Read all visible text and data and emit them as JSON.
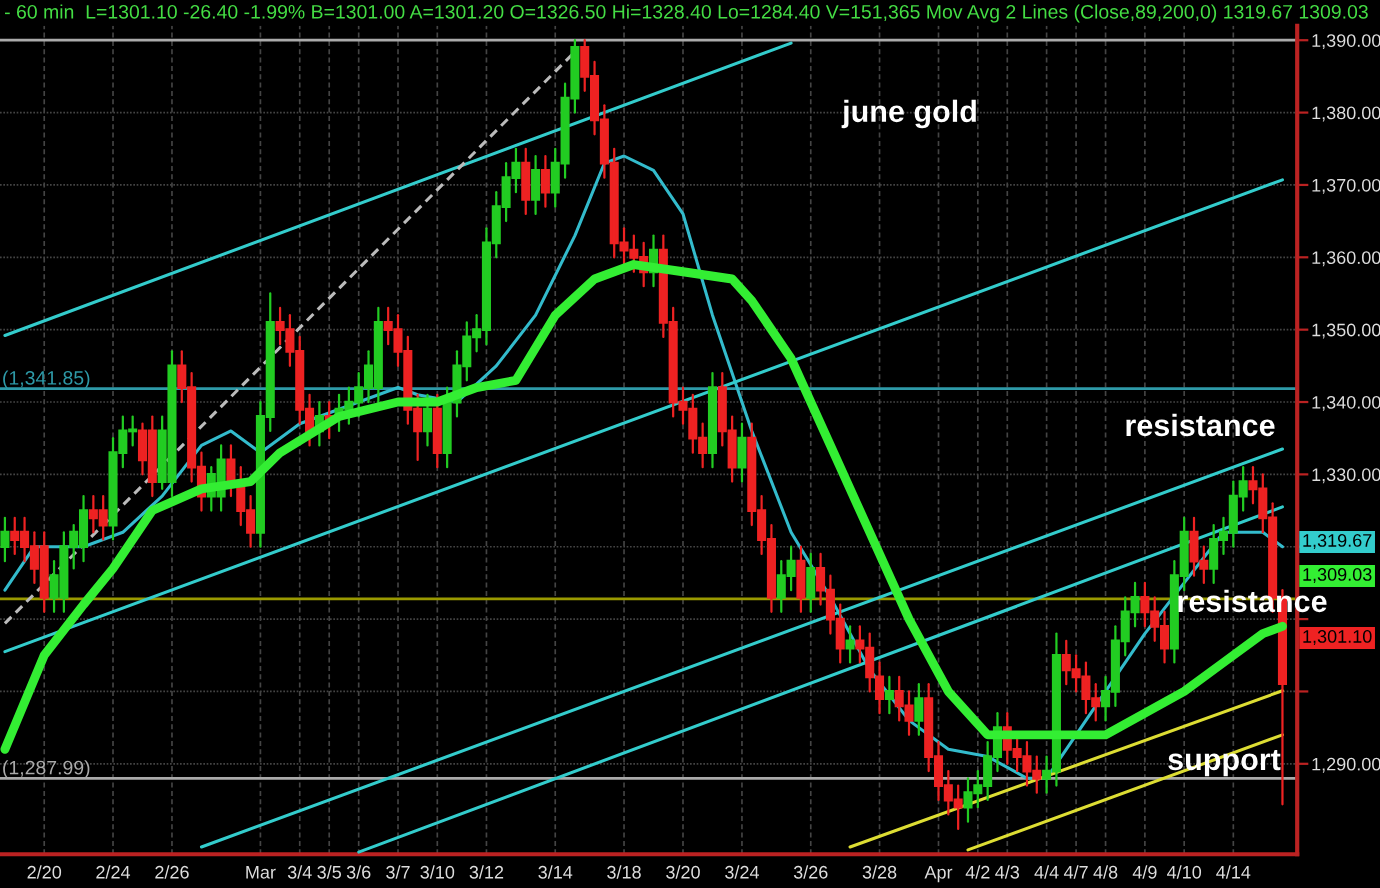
{
  "chart_data": {
    "type": "candlestick",
    "title": "- 60 min  L=1301.10 -26.40 -1.99% B=1301.00 A=1301.20 O=1326.50 Hi=1328.40 Lo=1284.40 V=151,365 Mov Avg 2 Lines (Close,89,200,0) 1319.67 1309.03",
    "categories": [
      null,
      null,
      null,
      null,
      "2/20",
      null,
      null,
      null,
      null,
      null,
      null,
      "2/24",
      null,
      null,
      null,
      null,
      null,
      "2/26",
      null,
      null,
      null,
      null,
      null,
      null,
      null,
      null,
      "Mar",
      null,
      null,
      null,
      "3/4",
      null,
      null,
      "3/5",
      null,
      null,
      "3/6",
      null,
      null,
      null,
      "3/7",
      null,
      null,
      null,
      "3/10",
      null,
      null,
      null,
      null,
      "3/12",
      null,
      null,
      null,
      null,
      null,
      null,
      "3/14",
      null,
      null,
      null,
      null,
      null,
      null,
      "3/18",
      null,
      null,
      null,
      null,
      null,
      "3/20",
      null,
      null,
      null,
      null,
      null,
      "3/24",
      null,
      null,
      null,
      null,
      null,
      null,
      "3/26",
      null,
      null,
      null,
      null,
      null,
      null,
      "3/28",
      null,
      null,
      null,
      null,
      null,
      "Apr",
      null,
      null,
      null,
      "4/2",
      null,
      null,
      "4/3",
      null,
      null,
      null,
      "4/4",
      null,
      null,
      "4/7",
      null,
      null,
      "4/8",
      null,
      null,
      null,
      "4/9",
      null,
      null,
      null,
      "4/10",
      null,
      null,
      null,
      null,
      "4/14",
      null,
      null,
      null,
      null,
      null
    ],
    "ohlc": [
      [
        1320,
        1324,
        1318,
        1322
      ],
      [
        1322,
        1324,
        1319,
        1321
      ],
      [
        1322,
        1324,
        1318,
        1320
      ],
      [
        1320,
        1322,
        1315,
        1317
      ],
      [
        1320,
        1322,
        1311,
        1313
      ],
      [
        1313,
        1318,
        1311,
        1316
      ],
      [
        1313,
        1322,
        1311,
        1320
      ],
      [
        1320,
        1323,
        1317,
        1322
      ],
      [
        1320,
        1327,
        1318,
        1325
      ],
      [
        1325,
        1327,
        1322,
        1324
      ],
      [
        1325,
        1327,
        1321,
        1323
      ],
      [
        1323,
        1335,
        1321,
        1333
      ],
      [
        1333,
        1338,
        1331,
        1336
      ],
      [
        1336,
        1338,
        1334,
        1336
      ],
      [
        1336,
        1337,
        1330,
        1332
      ],
      [
        1336,
        1338,
        1327,
        1329
      ],
      [
        1329,
        1338,
        1328,
        1336
      ],
      [
        1329,
        1347,
        1327,
        1345
      ],
      [
        1345,
        1347,
        1340,
        1342
      ],
      [
        1342,
        1344,
        1329,
        1331
      ],
      [
        1331,
        1333,
        1325,
        1327
      ],
      [
        1327,
        1331,
        1325,
        1330
      ],
      [
        1327,
        1334,
        1325,
        1332
      ],
      [
        1332,
        1334,
        1327,
        1329
      ],
      [
        1329,
        1331,
        1323,
        1325
      ],
      [
        1325,
        1327,
        1320,
        1322
      ],
      [
        1322,
        1340,
        1320,
        1338
      ],
      [
        1338,
        1355,
        1336,
        1351
      ],
      [
        1351,
        1353,
        1348,
        1350
      ],
      [
        1350,
        1352,
        1345,
        1347
      ],
      [
        1347,
        1349,
        1337,
        1339
      ],
      [
        1339,
        1341,
        1334,
        1336
      ],
      [
        1336,
        1340,
        1334,
        1338
      ],
      [
        1338,
        1340,
        1335,
        1337
      ],
      [
        1338,
        1341,
        1336,
        1339
      ],
      [
        1339,
        1342,
        1337,
        1340
      ],
      [
        1340,
        1344,
        1338,
        1342
      ],
      [
        1342,
        1347,
        1340,
        1345
      ],
      [
        1342,
        1353,
        1340,
        1351
      ],
      [
        1351,
        1353,
        1348,
        1350
      ],
      [
        1350,
        1352,
        1345,
        1347
      ],
      [
        1347,
        1349,
        1337,
        1339
      ],
      [
        1339,
        1341,
        1332,
        1336
      ],
      [
        1336,
        1341,
        1334,
        1339
      ],
      [
        1339,
        1341,
        1331,
        1333
      ],
      [
        1333,
        1342,
        1331,
        1340
      ],
      [
        1340,
        1347,
        1338,
        1345
      ],
      [
        1345,
        1351,
        1343,
        1349
      ],
      [
        1349,
        1352,
        1347,
        1350
      ],
      [
        1350,
        1364,
        1348,
        1362
      ],
      [
        1362,
        1369,
        1360,
        1367
      ],
      [
        1367,
        1373,
        1365,
        1371
      ],
      [
        1371,
        1375,
        1369,
        1373
      ],
      [
        1373,
        1375,
        1366,
        1368
      ],
      [
        1368,
        1374,
        1366,
        1372
      ],
      [
        1372,
        1374,
        1367,
        1369
      ],
      [
        1369,
        1375,
        1367,
        1373
      ],
      [
        1373,
        1384,
        1371,
        1382
      ],
      [
        1382,
        1390,
        1380,
        1389
      ],
      [
        1389,
        1390,
        1383,
        1385
      ],
      [
        1385,
        1387,
        1377,
        1379
      ],
      [
        1379,
        1381,
        1371,
        1373
      ],
      [
        1373,
        1375,
        1360,
        1362
      ],
      [
        1362,
        1364,
        1359,
        1361
      ],
      [
        1361,
        1363,
        1358,
        1360
      ],
      [
        1360,
        1362,
        1356,
        1358
      ],
      [
        1358,
        1363,
        1356,
        1361
      ],
      [
        1361,
        1363,
        1349,
        1351
      ],
      [
        1351,
        1353,
        1338,
        1340
      ],
      [
        1340,
        1342,
        1337,
        1339
      ],
      [
        1339,
        1341,
        1333,
        1335
      ],
      [
        1335,
        1337,
        1331,
        1333
      ],
      [
        1333,
        1344,
        1331,
        1342
      ],
      [
        1342,
        1344,
        1334,
        1336
      ],
      [
        1336,
        1338,
        1329,
        1331
      ],
      [
        1331,
        1337,
        1329,
        1335
      ],
      [
        1335,
        1337,
        1323,
        1325
      ],
      [
        1325,
        1327,
        1319,
        1321
      ],
      [
        1321,
        1323,
        1311,
        1313
      ],
      [
        1313,
        1318,
        1311,
        1316
      ],
      [
        1316,
        1320,
        1314,
        1318
      ],
      [
        1318,
        1320,
        1311,
        1313
      ],
      [
        1313,
        1319,
        1311,
        1317
      ],
      [
        1317,
        1319,
        1312,
        1314
      ],
      [
        1314,
        1316,
        1308,
        1310
      ],
      [
        1310,
        1312,
        1304,
        1306
      ],
      [
        1306,
        1309,
        1304,
        1307
      ],
      [
        1307,
        1309,
        1304,
        1306
      ],
      [
        1306,
        1308,
        1300,
        1302
      ],
      [
        1302,
        1304,
        1297,
        1299
      ],
      [
        1299,
        1302,
        1297,
        1300
      ],
      [
        1300,
        1302,
        1296,
        1298
      ],
      [
        1298,
        1300,
        1294,
        1296
      ],
      [
        1296,
        1301,
        1294,
        1299
      ],
      [
        1299,
        1301,
        1289,
        1291
      ],
      [
        1291,
        1293,
        1285,
        1287
      ],
      [
        1287,
        1289,
        1283,
        1285
      ],
      [
        1285,
        1287,
        1281,
        1284
      ],
      [
        1284,
        1288,
        1282,
        1286
      ],
      [
        1286,
        1289,
        1284,
        1287
      ],
      [
        1287,
        1293,
        1285,
        1291
      ],
      [
        1291,
        1297,
        1289,
        1295
      ],
      [
        1295,
        1297,
        1290,
        1292
      ],
      [
        1292,
        1294,
        1289,
        1291
      ],
      [
        1291,
        1293,
        1287,
        1289
      ],
      [
        1289,
        1291,
        1286,
        1288
      ],
      [
        1288,
        1291,
        1286,
        1289
      ],
      [
        1289,
        1308,
        1287,
        1305
      ],
      [
        1305,
        1307,
        1301,
        1303
      ],
      [
        1303,
        1305,
        1300,
        1302
      ],
      [
        1302,
        1304,
        1297,
        1299
      ],
      [
        1299,
        1301,
        1296,
        1298
      ],
      [
        1298,
        1302,
        1296,
        1300
      ],
      [
        1300,
        1309,
        1298,
        1307
      ],
      [
        1307,
        1313,
        1305,
        1311
      ],
      [
        1311,
        1315,
        1309,
        1313
      ],
      [
        1313,
        1315,
        1309,
        1311
      ],
      [
        1311,
        1313,
        1307,
        1309
      ],
      [
        1309,
        1311,
        1304,
        1306
      ],
      [
        1306,
        1318,
        1304,
        1316
      ],
      [
        1316,
        1324,
        1314,
        1322
      ],
      [
        1322,
        1324,
        1316,
        1318
      ],
      [
        1318,
        1320,
        1315,
        1317
      ],
      [
        1317,
        1323,
        1315,
        1321
      ],
      [
        1321,
        1324,
        1319,
        1322
      ],
      [
        1322,
        1329,
        1320,
        1327
      ],
      [
        1327,
        1331,
        1325,
        1329
      ],
      [
        1329,
        1331,
        1326,
        1328
      ],
      [
        1328,
        1330,
        1322,
        1324
      ],
      [
        1324,
        1326,
        1311,
        1313
      ],
      [
        1313,
        1314,
        1284.4,
        1301.1
      ]
    ],
    "series": [
      {
        "type": "line",
        "color": "#33ee33",
        "values": [
          1292,
          null,
          null,
          null,
          1305,
          null,
          null,
          null,
          1312,
          null,
          null,
          1317,
          null,
          null,
          null,
          1325,
          null,
          null,
          null,
          null,
          1328,
          null,
          null,
          null,
          null,
          1329,
          null,
          null,
          1333,
          null,
          null,
          null,
          null,
          null,
          1338,
          null,
          null,
          null,
          null,
          null,
          1340,
          null,
          null,
          null,
          1340,
          null,
          null,
          null,
          1342,
          null,
          null,
          null,
          1343,
          null,
          null,
          null,
          1352,
          null,
          null,
          null,
          1357,
          null,
          null,
          null,
          1359,
          null,
          null,
          null,
          null,
          1358,
          null,
          null,
          null,
          null,
          1357,
          null,
          1354,
          null,
          null,
          null,
          1346,
          null,
          null,
          null,
          1334,
          null,
          null,
          null,
          1322,
          null,
          null,
          null,
          1310,
          null,
          null,
          null,
          1300,
          null,
          null,
          null,
          1294,
          null,
          null,
          null,
          1294,
          null,
          null,
          null,
          1294,
          null,
          null,
          null,
          1294,
          null,
          null,
          null,
          1297,
          null,
          null,
          null,
          1300,
          null,
          null,
          null,
          1304,
          null,
          null,
          null,
          1308,
          null,
          1309
        ]
      },
      {
        "type": "line",
        "color": "#33bbcc",
        "values": [
          1314,
          null,
          null,
          1320,
          null,
          null,
          null,
          null,
          1320,
          null,
          null,
          null,
          1322,
          null,
          null,
          null,
          1327,
          null,
          null,
          null,
          1334,
          null,
          null,
          1336,
          null,
          null,
          1333,
          null,
          null,
          null,
          1337,
          null,
          null,
          null,
          1339,
          null,
          null,
          null,
          null,
          null,
          1342,
          null,
          1341,
          null,
          null,
          null,
          1340,
          null,
          null,
          null,
          1345,
          null,
          null,
          null,
          1352,
          null,
          null,
          null,
          1363,
          null,
          null,
          1373,
          null,
          1374,
          null,
          null,
          1372,
          null,
          null,
          1366,
          null,
          null,
          1352,
          null,
          null,
          null,
          1336,
          null,
          null,
          null,
          1322,
          null,
          null,
          null,
          1313,
          null,
          null,
          null,
          1303,
          null,
          null,
          null,
          1296,
          null,
          null,
          null,
          1292,
          null,
          null,
          null,
          1291,
          null,
          null,
          null,
          1288,
          null,
          1288,
          null,
          1292,
          null,
          null,
          null,
          1300,
          null,
          null,
          null,
          1308,
          null,
          null,
          null,
          1315,
          null,
          null,
          null,
          1322,
          null,
          null,
          null,
          1322,
          null,
          1320
        ]
      },
      {
        "type": "line",
        "color": "#33cccc",
        "values": [
          1349.2,
          null,
          null,
          null,
          null,
          null,
          null,
          null,
          null,
          null,
          null,
          null,
          null,
          null,
          null,
          null,
          null,
          null,
          null,
          null,
          null,
          null,
          null,
          null,
          null,
          null,
          null,
          null,
          null,
          null,
          null,
          null,
          null,
          null,
          null,
          null,
          null,
          null,
          null,
          null,
          null,
          null,
          null,
          null,
          null,
          null,
          null,
          null,
          null,
          null,
          null,
          null,
          null,
          null,
          null,
          null,
          null,
          null,
          null,
          null,
          null,
          null,
          null,
          null,
          null,
          null,
          null,
          null,
          null,
          null,
          null,
          null,
          null,
          null,
          null,
          null,
          null,
          null,
          null,
          null,
          1389.6,
          null,
          null,
          null,
          null,
          null,
          null,
          null,
          null,
          null,
          null,
          null,
          null,
          null,
          null,
          null,
          null,
          null,
          null,
          null,
          null,
          null,
          null,
          null,
          null,
          null,
          null,
          null,
          null,
          null,
          null,
          null,
          null,
          null,
          null,
          null,
          null,
          null,
          null,
          null,
          null,
          null,
          null,
          null,
          null,
          null,
          null,
          null,
          null,
          null,
          null
        ]
      },
      {
        "type": "line",
        "color": "#33cccc",
        "values": [
          1305.5,
          null,
          null,
          null,
          null,
          null,
          null,
          null,
          null,
          null,
          null,
          null,
          null,
          null,
          null,
          null,
          null,
          null,
          null,
          null,
          null,
          null,
          null,
          null,
          null,
          null,
          null,
          null,
          null,
          null,
          null,
          null,
          null,
          null,
          null,
          null,
          null,
          null,
          null,
          null,
          null,
          null,
          null,
          null,
          null,
          null,
          null,
          null,
          null,
          null,
          null,
          null,
          null,
          null,
          null,
          null,
          null,
          null,
          null,
          null,
          null,
          null,
          null,
          null,
          null,
          null,
          null,
          null,
          null,
          null,
          null,
          null,
          null,
          null,
          null,
          null,
          null,
          null,
          null,
          null,
          null,
          null,
          null,
          null,
          null,
          null,
          null,
          null,
          null,
          null,
          null,
          null,
          null,
          null,
          null,
          null,
          null,
          null,
          null,
          null,
          null,
          null,
          null,
          null,
          null,
          null,
          null,
          null,
          null,
          null,
          null,
          null,
          null,
          null,
          null,
          null,
          null,
          null,
          null,
          null,
          null,
          null,
          null,
          null,
          null,
          null,
          null,
          null,
          null,
          null,
          1370.7
        ]
      },
      {
        "type": "line",
        "color": "#33cccc",
        "values": [
          null,
          null,
          null,
          null,
          null,
          null,
          null,
          null,
          null,
          null,
          null,
          null,
          null,
          null,
          null,
          null,
          null,
          null,
          null,
          null,
          1278.5,
          null,
          null,
          null,
          null,
          null,
          null,
          null,
          null,
          null,
          null,
          null,
          null,
          null,
          null,
          null,
          null,
          null,
          null,
          null,
          null,
          null,
          null,
          null,
          null,
          null,
          null,
          null,
          null,
          null,
          null,
          null,
          null,
          null,
          null,
          null,
          null,
          null,
          null,
          null,
          null,
          null,
          null,
          null,
          null,
          null,
          null,
          null,
          null,
          null,
          null,
          null,
          null,
          null,
          null,
          null,
          null,
          null,
          null,
          null,
          null,
          null,
          null,
          null,
          null,
          null,
          null,
          null,
          null,
          null,
          null,
          null,
          null,
          null,
          null,
          null,
          null,
          null,
          null,
          null,
          null,
          null,
          null,
          null,
          null,
          null,
          null,
          null,
          null,
          null,
          null,
          null,
          null,
          null,
          null,
          null,
          null,
          null,
          null,
          null,
          null,
          null,
          null,
          null,
          null,
          null,
          null,
          null,
          null,
          null,
          1333.5
        ]
      },
      {
        "type": "line",
        "color": "#33cccc",
        "values": [
          null,
          null,
          null,
          null,
          null,
          null,
          null,
          null,
          null,
          null,
          null,
          null,
          null,
          null,
          null,
          null,
          null,
          null,
          null,
          null,
          null,
          null,
          null,
          null,
          null,
          null,
          null,
          null,
          null,
          null,
          null,
          null,
          null,
          null,
          null,
          null,
          1277.8,
          null,
          null,
          null,
          null,
          null,
          null,
          null,
          null,
          null,
          null,
          null,
          null,
          null,
          null,
          null,
          null,
          null,
          null,
          null,
          null,
          null,
          null,
          null,
          null,
          null,
          null,
          null,
          null,
          null,
          null,
          null,
          null,
          null,
          null,
          null,
          null,
          null,
          null,
          null,
          null,
          null,
          null,
          null,
          null,
          null,
          null,
          null,
          null,
          null,
          null,
          null,
          null,
          null,
          null,
          null,
          null,
          null,
          null,
          null,
          null,
          null,
          null,
          null,
          null,
          null,
          null,
          null,
          null,
          null,
          null,
          null,
          null,
          null,
          null,
          null,
          null,
          null,
          null,
          null,
          null,
          null,
          null,
          null,
          null,
          null,
          null,
          null,
          null,
          null,
          null,
          null,
          null,
          null,
          1325.5
        ]
      },
      {
        "type": "line",
        "color": "#dddd33",
        "values": [
          null,
          null,
          null,
          null,
          null,
          null,
          null,
          null,
          null,
          null,
          null,
          null,
          null,
          null,
          null,
          null,
          null,
          null,
          null,
          null,
          null,
          null,
          null,
          null,
          null,
          null,
          null,
          null,
          null,
          null,
          null,
          null,
          null,
          null,
          null,
          null,
          null,
          null,
          null,
          null,
          null,
          null,
          null,
          null,
          null,
          null,
          null,
          null,
          null,
          null,
          null,
          null,
          null,
          null,
          null,
          null,
          null,
          null,
          null,
          null,
          null,
          null,
          null,
          null,
          null,
          null,
          null,
          null,
          null,
          null,
          null,
          null,
          null,
          null,
          null,
          null,
          null,
          null,
          null,
          null,
          null,
          null,
          null,
          null,
          null,
          null,
          1278.5,
          null,
          null,
          null,
          null,
          null,
          null,
          null,
          null,
          null,
          null,
          null,
          null,
          null,
          null,
          null,
          null,
          null,
          null,
          null,
          null,
          null,
          null,
          null,
          null,
          null,
          null,
          null,
          null,
          null,
          null,
          null,
          null,
          null,
          null,
          null,
          null,
          null,
          null,
          null,
          null,
          null,
          null,
          null,
          1300.1
        ]
      },
      {
        "type": "line",
        "color": "#dddd33",
        "values": [
          null,
          null,
          null,
          null,
          null,
          null,
          null,
          null,
          null,
          null,
          null,
          null,
          null,
          null,
          null,
          null,
          null,
          null,
          null,
          null,
          null,
          null,
          null,
          null,
          null,
          null,
          null,
          null,
          null,
          null,
          null,
          null,
          null,
          null,
          null,
          null,
          null,
          null,
          null,
          null,
          null,
          null,
          null,
          null,
          null,
          null,
          null,
          null,
          null,
          null,
          null,
          null,
          null,
          null,
          null,
          null,
          null,
          null,
          null,
          null,
          null,
          null,
          null,
          null,
          null,
          null,
          null,
          null,
          null,
          null,
          null,
          null,
          null,
          null,
          null,
          null,
          null,
          null,
          null,
          null,
          null,
          null,
          null,
          null,
          null,
          null,
          null,
          null,
          null,
          null,
          null,
          null,
          null,
          null,
          null,
          null,
          null,
          null,
          1278.1,
          null,
          null,
          null,
          null,
          null,
          null,
          null,
          null,
          null,
          null,
          null,
          null,
          null,
          null,
          null,
          null,
          null,
          null,
          null,
          null,
          null,
          null,
          null,
          null,
          null,
          null,
          null,
          null,
          null,
          null,
          null,
          1294
        ]
      },
      {
        "type": "line",
        "color": "#bbbbbb",
        "line_style": "dashed",
        "values": [
          1309.4,
          null,
          null,
          null,
          null,
          null,
          null,
          null,
          null,
          null,
          null,
          null,
          null,
          null,
          null,
          null,
          null,
          null,
          null,
          null,
          null,
          null,
          null,
          null,
          null,
          null,
          null,
          null,
          null,
          null,
          null,
          null,
          null,
          null,
          null,
          null,
          null,
          null,
          null,
          null,
          null,
          null,
          null,
          null,
          null,
          null,
          null,
          null,
          null,
          null,
          null,
          null,
          null,
          null,
          null,
          null,
          null,
          null,
          1388.4,
          null,
          null,
          null,
          null,
          null,
          null,
          null,
          null,
          null,
          null,
          null,
          null,
          null,
          null,
          null,
          null,
          null,
          null,
          null,
          null,
          null,
          null,
          null,
          null,
          null,
          null,
          null,
          null,
          null,
          null,
          null,
          null,
          null,
          null,
          null,
          null,
          null,
          null,
          null,
          null,
          null,
          null,
          null,
          null,
          null,
          null,
          null,
          null,
          null,
          null,
          null,
          null,
          null,
          null,
          null,
          null,
          null,
          null,
          null,
          null,
          null,
          null,
          null,
          null,
          null,
          null,
          null,
          null,
          null,
          null,
          null,
          null
        ]
      }
    ],
    "ref_lines": [
      {
        "axis": "y",
        "value": 1341.85,
        "label": "(1,341.85)",
        "color": "#2e9aa8"
      },
      {
        "axis": "y",
        "value": 1287.99,
        "label": "(1,287.99)",
        "color": "#aaaaaa"
      },
      {
        "axis": "y",
        "value": 1312.8,
        "color": "#999900"
      },
      {
        "axis": "y",
        "value": 1390,
        "color": "#aaaaaa"
      }
    ],
    "annotations": [
      "june gold",
      "resistance",
      "resistance",
      "support",
      "1,319.67",
      "1,309.03",
      "1,301.10"
    ],
    "ylim": [
      1277.5,
      1392
    ],
    "yticks": [
      {
        "value": 1290,
        "label": "1,290.00"
      },
      {
        "value": 1300,
        "label": null
      },
      {
        "value": 1310,
        "label": null
      },
      {
        "value": 1320,
        "label": null
      },
      {
        "value": 1330,
        "label": "1,330.00"
      },
      {
        "value": 1340,
        "label": "1,340.00"
      },
      {
        "value": 1350,
        "label": "1,350.00"
      },
      {
        "value": 1360,
        "label": "1,360.00"
      },
      {
        "value": 1370,
        "label": "1,370.00"
      },
      {
        "value": 1380,
        "label": "1,380.00"
      },
      {
        "value": 1390,
        "label": "1,390.00"
      }
    ],
    "grid": true
  }
}
